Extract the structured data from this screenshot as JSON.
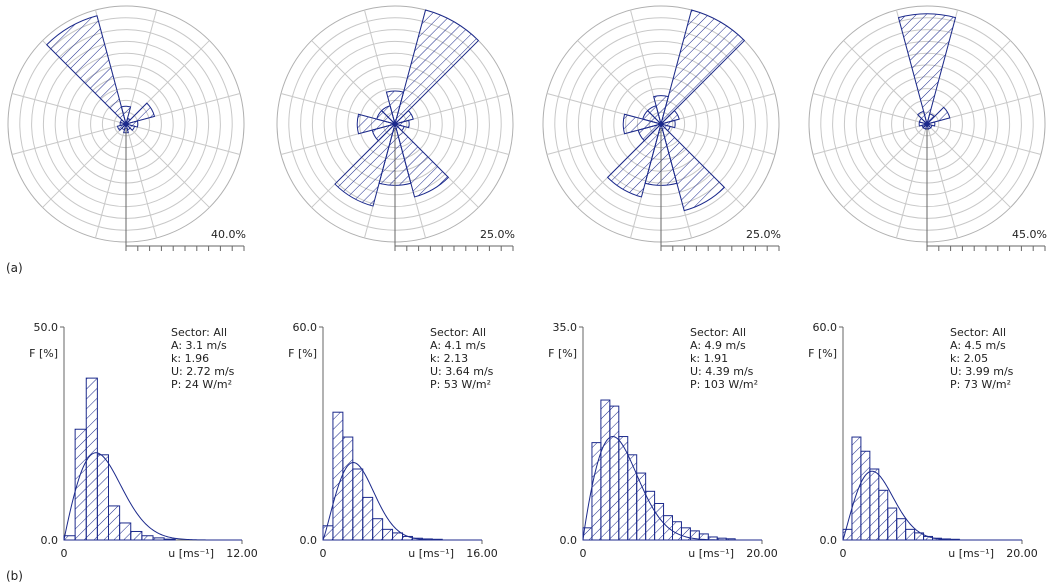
{
  "panel_labels": [
    "(a)",
    "(b)"
  ],
  "colors": {
    "series": "#1c2a8c",
    "grid": "#c8c8c8",
    "text": "#222222"
  },
  "chart_data": [
    {
      "type": "rose",
      "sectors": 12,
      "values": [
        6,
        2,
        10,
        4,
        3,
        2,
        3,
        2,
        3,
        2,
        2,
        38
      ],
      "scale_max": 40,
      "scale_label": "40.0%",
      "grid": true
    },
    {
      "type": "rose",
      "sectors": 12,
      "values": [
        7,
        25,
        4,
        3,
        2,
        16,
        13,
        18,
        5,
        8,
        4,
        4
      ],
      "scale_max": 25,
      "scale_label": "25.0%",
      "grid": true
    },
    {
      "type": "rose",
      "sectors": 12,
      "values": [
        6,
        25,
        4,
        3,
        2,
        19,
        13,
        16,
        5,
        8,
        4,
        4
      ],
      "scale_max": 25,
      "scale_label": "25.0%",
      "grid": true
    },
    {
      "type": "rose",
      "sectors": 12,
      "values": [
        42,
        4,
        9,
        3,
        2,
        2,
        2,
        2,
        2,
        3,
        3,
        5
      ],
      "scale_max": 45,
      "scale_label": "45.0%",
      "grid": true
    },
    {
      "type": "histogram",
      "bin_width": 0.75,
      "values": [
        1,
        26,
        38,
        20,
        8,
        4,
        2,
        1,
        0.5,
        0.2,
        0,
        0,
        0,
        0,
        0,
        0
      ],
      "weibull": {
        "A": 3.1,
        "k": 1.96
      },
      "xlim": [
        0,
        12
      ],
      "ylim": [
        0,
        50
      ],
      "x_tick_labels": [
        "0",
        "12.00"
      ],
      "y_tick_labels": [
        "0.0",
        "50.0"
      ],
      "xlabel": "u [ms⁻¹]",
      "ylabel": "F [%]",
      "stats": [
        "Sector: All",
        "A: 3.1 m/s",
        "k: 1.96",
        "U: 2.72 m/s",
        "P: 24 W/m²"
      ]
    },
    {
      "type": "histogram",
      "bin_width": 1.0,
      "values": [
        4,
        36,
        29,
        20,
        12,
        6,
        3,
        2,
        1,
        0.5,
        0.3,
        0.2,
        0,
        0,
        0,
        0
      ],
      "weibull": {
        "A": 4.1,
        "k": 2.13
      },
      "xlim": [
        0,
        16
      ],
      "ylim": [
        0,
        60
      ],
      "x_tick_labels": [
        "0",
        "16.00"
      ],
      "y_tick_labels": [
        "0.0",
        "60.0"
      ],
      "xlabel": "u [ms⁻¹]",
      "ylabel": "F [%]",
      "stats": [
        "Sector: All",
        "A: 4.1 m/s",
        "k: 2.13",
        "U: 3.64 m/s",
        "P: 53 W/m²"
      ]
    },
    {
      "type": "histogram",
      "bin_width": 1.0,
      "values": [
        2,
        16,
        23,
        22,
        17,
        14,
        11,
        8,
        6,
        4,
        3,
        2,
        1.5,
        1,
        0.5,
        0.3,
        0.2,
        0,
        0,
        0
      ],
      "weibull": {
        "A": 4.9,
        "k": 1.91
      },
      "xlim": [
        0,
        20
      ],
      "ylim": [
        0,
        35
      ],
      "x_tick_labels": [
        "0",
        "20.00"
      ],
      "y_tick_labels": [
        "0.0",
        "35.0"
      ],
      "xlabel": "u [ms⁻¹]",
      "ylabel": "F [%]",
      "stats": [
        "Sector: All",
        "A: 4.9 m/s",
        "k: 1.91",
        "U: 4.39 m/s",
        "P: 103 W/m²"
      ]
    },
    {
      "type": "histogram",
      "bin_width": 1.0,
      "values": [
        3,
        29,
        25,
        20,
        14,
        9,
        6,
        3,
        2,
        1,
        0.5,
        0.3,
        0.2,
        0,
        0,
        0,
        0,
        0,
        0,
        0
      ],
      "weibull": {
        "A": 4.5,
        "k": 2.05
      },
      "xlim": [
        0,
        20
      ],
      "ylim": [
        0,
        60
      ],
      "x_tick_labels": [
        "0",
        "20.00"
      ],
      "y_tick_labels": [
        "0.0",
        "60.0"
      ],
      "xlabel": "u [ms⁻¹]",
      "ylabel": "F [%]",
      "stats": [
        "Sector: All",
        "A: 4.5 m/s",
        "k: 2.05",
        "U: 3.99 m/s",
        "P: 73 W/m²"
      ]
    }
  ]
}
